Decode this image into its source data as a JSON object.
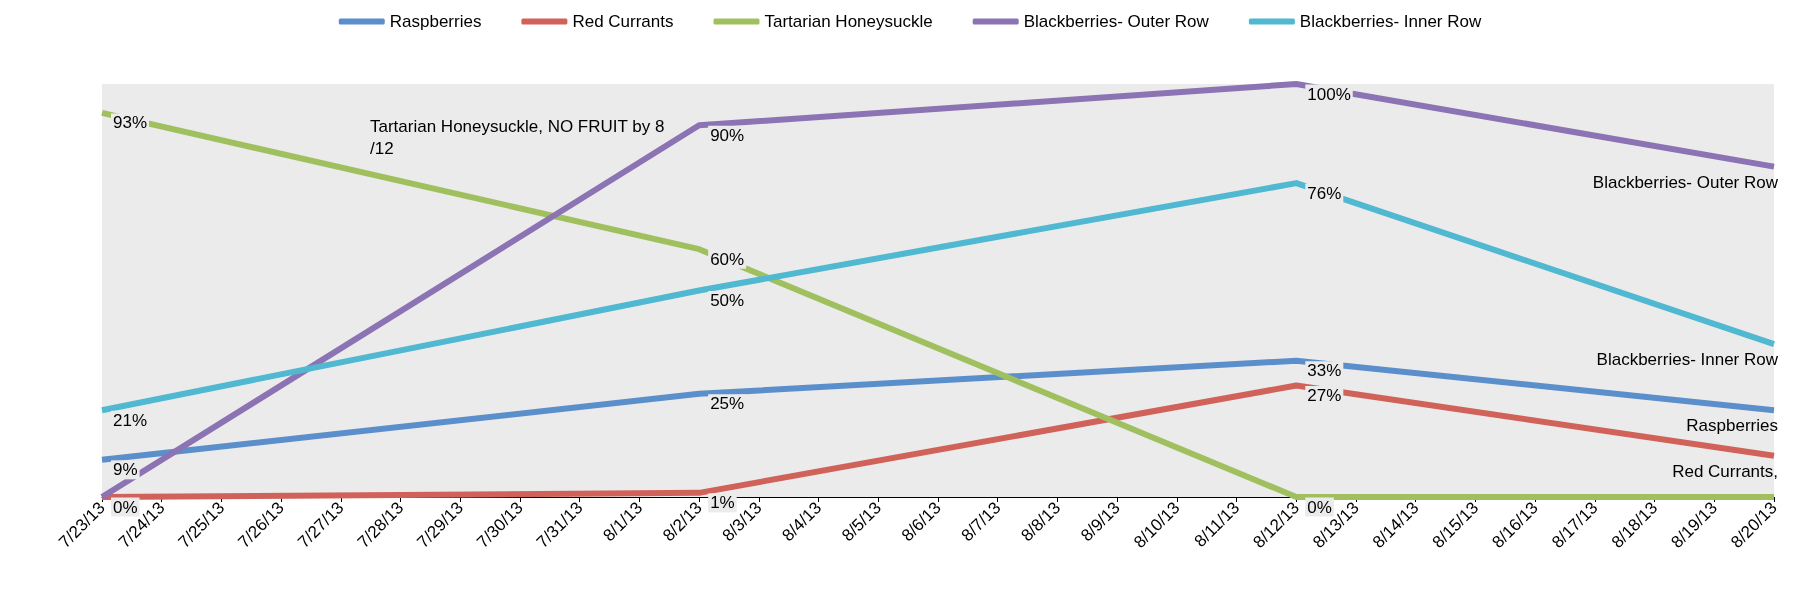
{
  "chart_data": {
    "type": "line",
    "categories": [
      "7/23/13",
      "7/24/13",
      "7/25/13",
      "7/26/13",
      "7/27/13",
      "7/28/13",
      "7/29/13",
      "7/30/13",
      "7/31/13",
      "8/1/13",
      "8/2/13",
      "8/3/13",
      "8/4/13",
      "8/5/13",
      "8/6/13",
      "8/7/13",
      "8/8/13",
      "8/9/13",
      "8/10/13",
      "8/11/13",
      "8/12/13",
      "8/13/13",
      "8/14/13",
      "8/15/13",
      "8/16/13",
      "8/17/13",
      "8/18/13",
      "8/19/13",
      "8/20/13"
    ],
    "series": [
      {
        "name": "Raspberries",
        "color": "#5b8fcb",
        "values": [
          9,
          null,
          null,
          null,
          null,
          null,
          null,
          null,
          null,
          null,
          25,
          null,
          null,
          null,
          null,
          null,
          null,
          null,
          null,
          null,
          33,
          null,
          null,
          null,
          null,
          null,
          null,
          null,
          21
        ],
        "value_labels": [
          "9%",
          null,
          null,
          null,
          null,
          null,
          null,
          null,
          null,
          null,
          "25%",
          null,
          null,
          null,
          null,
          null,
          null,
          null,
          null,
          null,
          "33%",
          null,
          null,
          null,
          null,
          null,
          null,
          null,
          null
        ]
      },
      {
        "name": "Red Currants",
        "color": "#d0625a",
        "values": [
          0,
          null,
          null,
          null,
          null,
          null,
          null,
          null,
          null,
          null,
          1,
          null,
          null,
          null,
          null,
          null,
          null,
          null,
          null,
          null,
          27,
          null,
          null,
          null,
          null,
          null,
          null,
          null,
          10
        ],
        "value_labels": [
          "0%",
          null,
          null,
          null,
          null,
          null,
          null,
          null,
          null,
          null,
          "1%",
          null,
          null,
          null,
          null,
          null,
          null,
          null,
          null,
          null,
          "27%",
          null,
          null,
          null,
          null,
          null,
          null,
          null,
          null
        ]
      },
      {
        "name": "Tartarian Honeysuckle",
        "color": "#a0c060",
        "values": [
          93,
          null,
          null,
          null,
          null,
          null,
          null,
          null,
          null,
          null,
          60,
          null,
          null,
          null,
          null,
          null,
          null,
          null,
          null,
          null,
          0,
          null,
          null,
          null,
          null,
          null,
          null,
          null,
          0
        ],
        "value_labels": [
          "93%",
          null,
          null,
          null,
          null,
          null,
          null,
          null,
          null,
          null,
          "60%",
          null,
          null,
          null,
          null,
          null,
          null,
          null,
          null,
          null,
          "0%",
          null,
          null,
          null,
          null,
          null,
          null,
          null,
          null
        ]
      },
      {
        "name": "Blackberries- Outer Row",
        "color": "#8c73b3",
        "values": [
          0,
          null,
          null,
          null,
          null,
          null,
          null,
          null,
          null,
          null,
          90,
          null,
          null,
          null,
          null,
          null,
          null,
          null,
          null,
          null,
          100,
          null,
          null,
          null,
          null,
          null,
          null,
          null,
          80
        ],
        "value_labels": [
          null,
          null,
          null,
          null,
          null,
          null,
          null,
          null,
          null,
          null,
          "90%",
          null,
          null,
          null,
          null,
          null,
          null,
          null,
          null,
          null,
          "100%",
          null,
          null,
          null,
          null,
          null,
          null,
          null,
          null
        ]
      },
      {
        "name": "Blackberries- Inner Row",
        "color": "#50b8d0",
        "values": [
          21,
          null,
          null,
          null,
          null,
          null,
          null,
          null,
          null,
          null,
          50,
          null,
          null,
          null,
          null,
          null,
          null,
          null,
          null,
          null,
          76,
          null,
          null,
          null,
          null,
          null,
          null,
          null,
          37
        ],
        "value_labels": [
          "21%",
          null,
          null,
          null,
          null,
          null,
          null,
          null,
          null,
          null,
          "50%",
          null,
          null,
          null,
          null,
          null,
          null,
          null,
          null,
          null,
          "76%",
          null,
          null,
          null,
          null,
          null,
          null,
          null,
          null
        ]
      }
    ],
    "ylim": [
      0,
      100
    ],
    "tick_labels": "x",
    "legend": "top",
    "marker": "none",
    "grid": false,
    "annotations": [
      "Tartarian Honeysuckle, NO FRUIT by 8/12",
      {
        "text": "Blackberries- Outer Row",
        "x": "8/20/13",
        "y": 80
      },
      {
        "text": "Blackberries- Inner Row",
        "x": "8/20/13",
        "y": 37
      },
      {
        "text": "Raspberries",
        "x": "8/20/13",
        "y": 21
      },
      {
        "text": "Red Currants,",
        "x": "8/20/13",
        "y": 10
      }
    ]
  }
}
